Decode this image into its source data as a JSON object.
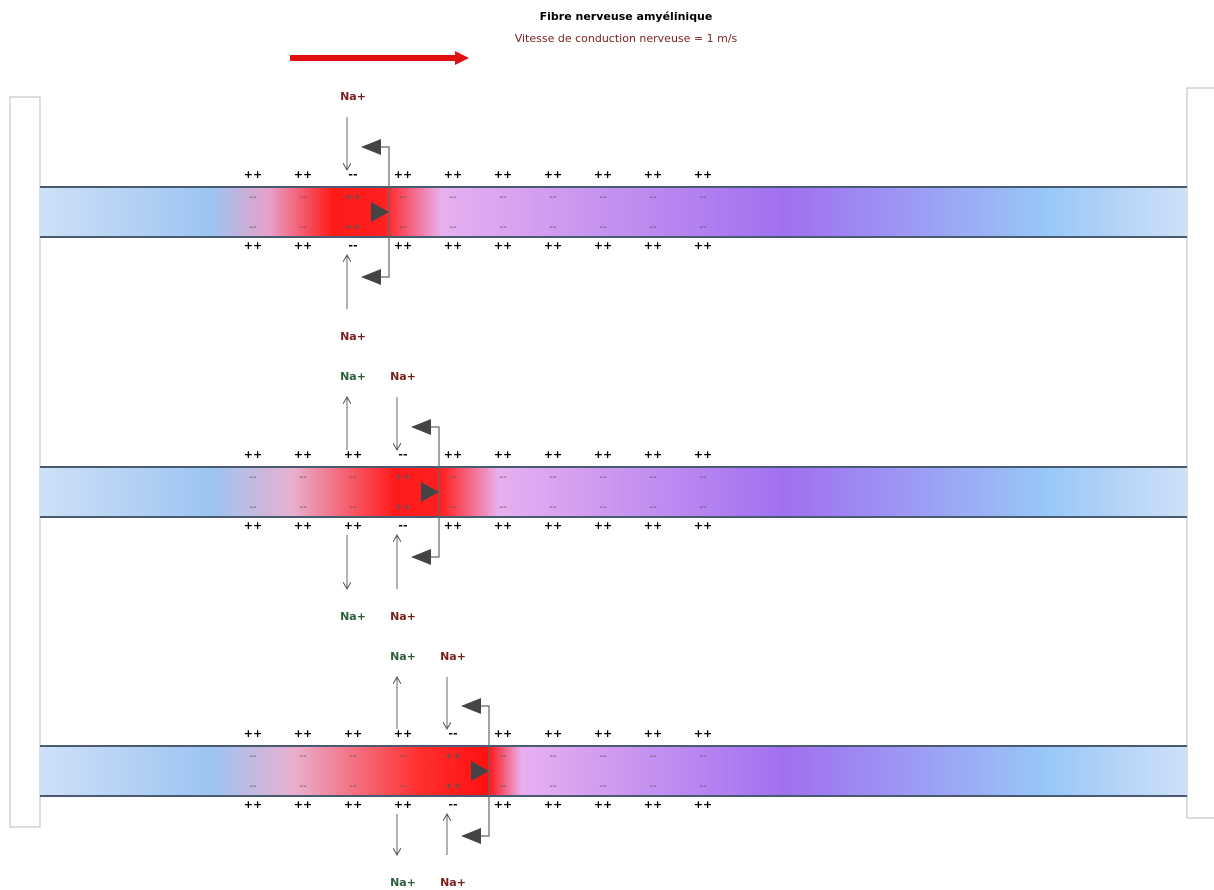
{
  "header": {
    "title": "Fibre nerveuse amyélinique",
    "subtitle": "Vitesse de conduction nerveuse = 1 m/s"
  },
  "fibers": [
    {
      "outer_top": [
        "++",
        "++",
        "--",
        "++",
        "++",
        "++",
        "++",
        "++",
        "++",
        "++"
      ],
      "inner_top": [
        "--",
        "--",
        "++",
        "--",
        "--",
        "--",
        "--",
        "--",
        "--",
        "--"
      ],
      "inner_bottom": [
        "--",
        "--",
        "++",
        "--",
        "--",
        "--",
        "--",
        "--",
        "--",
        "--"
      ],
      "outer_bottom": [
        "++",
        "++",
        "--",
        "++",
        "++",
        "++",
        "++",
        "++",
        "++",
        "++"
      ],
      "ions_top": [
        {
          "label": "Na+",
          "color": "#7a1f1f"
        }
      ],
      "ions_bottom": [
        {
          "label": "Na+",
          "color": "#7a1f1f"
        }
      ]
    },
    {
      "outer_top": [
        "++",
        "++",
        "++",
        "--",
        "++",
        "++",
        "++",
        "++",
        "++",
        "++"
      ],
      "inner_top": [
        "--",
        "--",
        "--",
        "++",
        "--",
        "--",
        "--",
        "--",
        "--",
        "--"
      ],
      "inner_bottom": [
        "--",
        "--",
        "--",
        "++",
        "--",
        "--",
        "--",
        "--",
        "--",
        "--"
      ],
      "outer_bottom": [
        "++",
        "++",
        "++",
        "--",
        "++",
        "++",
        "++",
        "++",
        "++",
        "++"
      ],
      "ions_top": [
        {
          "label": "Na+",
          "color": "#2f5f3f"
        },
        {
          "label": "Na+",
          "color": "#7a1f1f"
        }
      ],
      "ions_bottom": [
        {
          "label": "Na+",
          "color": "#2f5f3f"
        },
        {
          "label": "Na+",
          "color": "#7a1f1f"
        }
      ]
    },
    {
      "outer_top": [
        "++",
        "++",
        "++",
        "++",
        "--",
        "++",
        "++",
        "++",
        "++",
        "++"
      ],
      "inner_top": [
        "--",
        "--",
        "--",
        "--",
        "++",
        "--",
        "--",
        "--",
        "--",
        "--"
      ],
      "inner_bottom": [
        "--",
        "--",
        "--",
        "--",
        "++",
        "--",
        "--",
        "--",
        "--",
        "--"
      ],
      "outer_bottom": [
        "++",
        "++",
        "++",
        "++",
        "--",
        "++",
        "++",
        "++",
        "++",
        "++"
      ],
      "ions_top": [
        {
          "label": "Na+",
          "color": "#2f5f3f"
        },
        {
          "label": "Na+",
          "color": "#7a1f1f"
        }
      ],
      "ions_bottom": [
        {
          "label": "Na+",
          "color": "#2f5f3f"
        },
        {
          "label": "Na+",
          "color": "#7a1f1f"
        }
      ]
    }
  ]
}
